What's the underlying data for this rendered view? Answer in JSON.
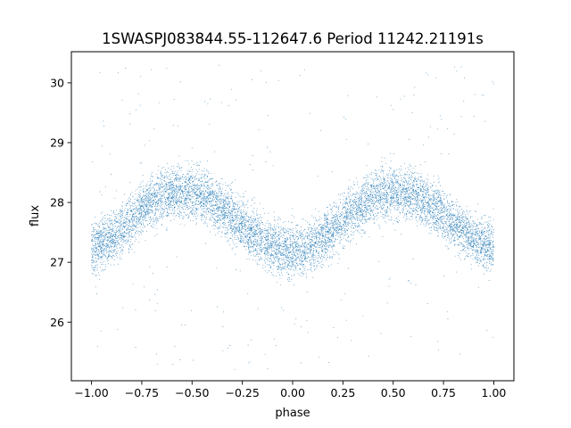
{
  "chart_data": {
    "type": "scatter",
    "title": "1SWASPJ083844.55-112647.6 Period 11242.21191s",
    "xlabel": "phase",
    "ylabel": "flux",
    "xlim": [
      -1.1,
      1.1
    ],
    "ylim": [
      25.02,
      30.52
    ],
    "xticks": [
      -1.0,
      -0.75,
      -0.5,
      -0.25,
      0.0,
      0.25,
      0.5,
      0.75,
      1.0
    ],
    "xtick_labels": [
      "−1.00",
      "−0.75",
      "−0.50",
      "−0.25",
      "0.00",
      "0.25",
      "0.50",
      "0.75",
      "1.00"
    ],
    "yticks": [
      26,
      27,
      28,
      29,
      30
    ],
    "ytick_labels": [
      "26",
      "27",
      "28",
      "29",
      "30"
    ],
    "grid": false,
    "series": [
      {
        "color": "#1f77b4",
        "marker_size": 0.45,
        "points": {
          "phase": [
            -1.0,
            -0.95,
            -0.9,
            -0.85,
            -0.8,
            -0.75,
            -0.7,
            -0.65,
            -0.6,
            -0.55,
            -0.5,
            -0.45,
            -0.4,
            -0.35,
            -0.3,
            -0.25,
            -0.2,
            -0.15,
            -0.1,
            -0.05,
            0.0,
            0.05,
            0.1,
            0.15,
            0.2,
            0.25,
            0.3,
            0.35,
            0.4,
            0.45,
            0.5,
            0.55,
            0.6,
            0.65,
            0.7,
            0.75,
            0.8,
            0.85,
            0.9,
            0.95,
            1.0
          ],
          "flux_mean": [
            27.25,
            27.3,
            27.4,
            27.55,
            27.72,
            27.88,
            28.0,
            28.1,
            28.15,
            28.18,
            28.17,
            28.12,
            28.02,
            27.9,
            27.78,
            27.65,
            27.5,
            27.38,
            27.27,
            27.2,
            27.18,
            27.2,
            27.28,
            27.4,
            27.55,
            27.7,
            27.85,
            27.98,
            28.08,
            28.15,
            28.18,
            28.17,
            28.12,
            28.03,
            27.92,
            27.8,
            27.65,
            27.52,
            27.4,
            27.3,
            27.25
          ],
          "flux_spread": 0.3,
          "outlier_range": [
            25.2,
            30.3
          ]
        }
      }
    ]
  }
}
